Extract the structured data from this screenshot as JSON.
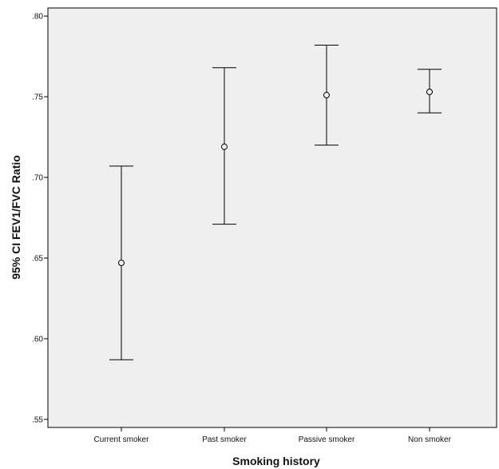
{
  "chart_data": {
    "type": "errorbar",
    "xlabel": "Smoking history",
    "ylabel": "95% CI FEV1/FVC Ratio",
    "ylim": [
      0.545,
      0.805
    ],
    "y_ticks": [
      0.55,
      0.6,
      0.65,
      0.7,
      0.75,
      0.8
    ],
    "y_tick_labels": [
      ".55",
      ".60",
      ".65",
      ".70",
      ".75",
      ".80"
    ],
    "categories": [
      "Current smoker",
      "Past smoker",
      "Passive smoker",
      "Non smoker"
    ],
    "mean": [
      0.647,
      0.719,
      0.751,
      0.753
    ],
    "ci_lower": [
      0.587,
      0.671,
      0.72,
      0.74
    ],
    "ci_upper": [
      0.707,
      0.768,
      0.782,
      0.767
    ],
    "grid": false,
    "legend": "none",
    "colors": {
      "plot_background": "#efefef",
      "marks": "#000000"
    }
  }
}
